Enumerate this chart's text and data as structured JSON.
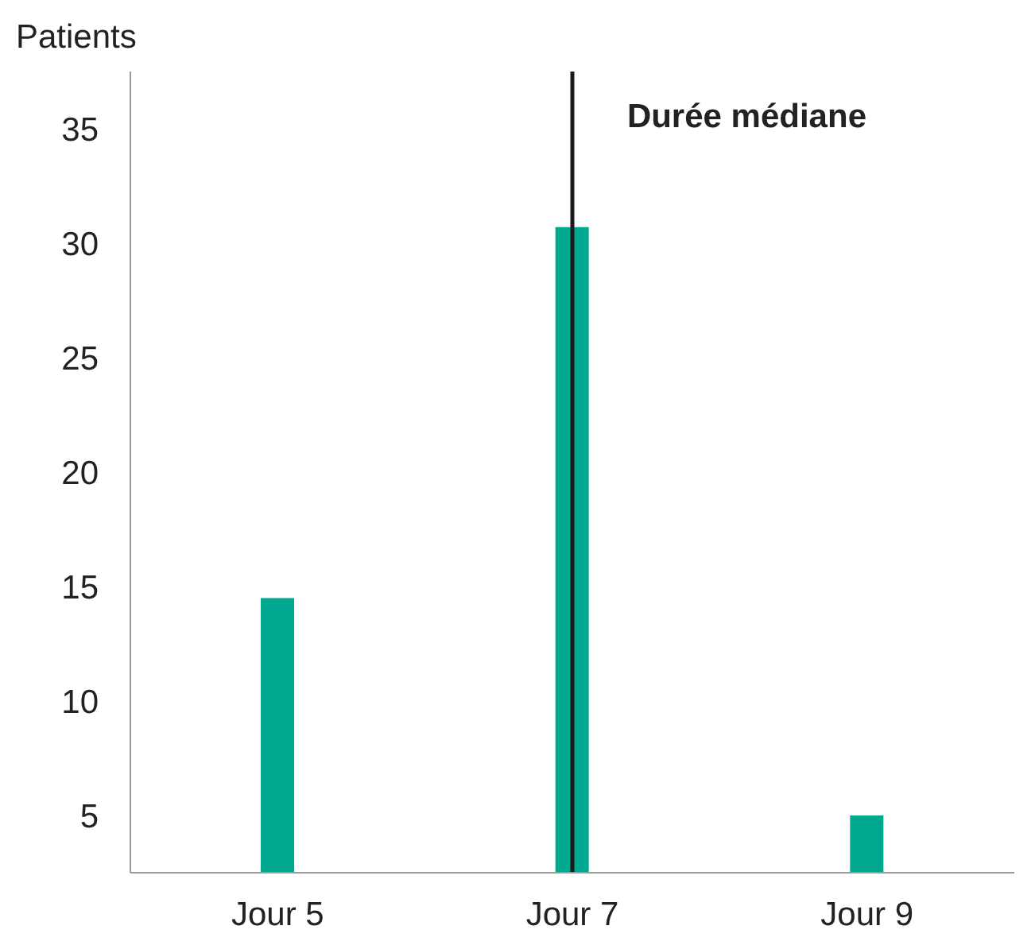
{
  "chart_data": {
    "type": "bar",
    "ylabel": "Patients",
    "categories": [
      "Jour 5",
      "Jour 7",
      "Jour 9"
    ],
    "values": [
      14.5,
      30.7,
      5
    ],
    "color": "#00a88f",
    "ylim": [
      2.5,
      37.5
    ],
    "yticks": [
      5,
      10,
      15,
      20,
      25,
      30,
      35
    ],
    "grid": false,
    "legend": false,
    "ref_lines": [
      {
        "axis": "x",
        "value": "Jour 7",
        "label": "Durée médiane",
        "color": "#1a1a1a"
      }
    ]
  }
}
